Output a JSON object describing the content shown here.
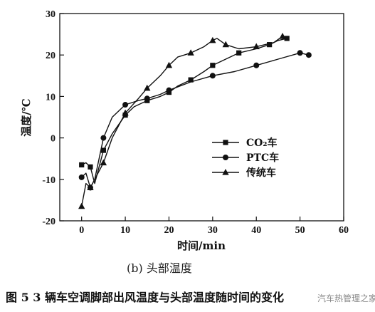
{
  "chart_data": {
    "type": "line",
    "subtitle": "(b)  头部温度",
    "xlabel": "时间/min",
    "ylabel": "温度/℃",
    "xlim": [
      -5,
      60
    ],
    "ylim": [
      -20,
      30
    ],
    "xticks": [
      "0",
      "10",
      "20",
      "30",
      "40",
      "50",
      "60"
    ],
    "yticks": [
      "-20",
      "-10",
      "0",
      "10",
      "20",
      "30"
    ],
    "legend_position": "center-right",
    "series": [
      {
        "name": "CO₂车",
        "marker": "square",
        "x": [
          0,
          1,
          2,
          3,
          5,
          7,
          10,
          12,
          15,
          18,
          20,
          22,
          25,
          28,
          30,
          33,
          36,
          40,
          43,
          45,
          47
        ],
        "y": [
          -6.5,
          -6,
          -7,
          -11,
          -3,
          1,
          5.5,
          7.5,
          9,
          10,
          11,
          12.5,
          14,
          16,
          17.5,
          19,
          20.5,
          21.5,
          22.5,
          23.5,
          24
        ]
      },
      {
        "name": "PTC车",
        "marker": "circle",
        "x": [
          0,
          1,
          2,
          3,
          5,
          7,
          10,
          13,
          15,
          18,
          20,
          25,
          30,
          35,
          40,
          45,
          50,
          52
        ],
        "y": [
          -9.5,
          -8.5,
          -12,
          -10,
          0,
          5,
          8,
          9,
          9.5,
          10.5,
          11.5,
          13.5,
          15,
          16,
          17.5,
          19,
          20.5,
          20
        ]
      },
      {
        "name": "传统车",
        "marker": "triangle",
        "x": [
          0,
          1,
          2,
          3,
          5,
          7,
          10,
          13,
          15,
          18,
          20,
          22,
          25,
          28,
          30,
          31,
          33,
          36,
          40,
          44,
          46
        ],
        "y": [
          -16.5,
          -11,
          -12,
          -10,
          -6,
          0,
          6,
          9.5,
          12,
          15,
          17.5,
          19.5,
          20.5,
          22,
          23.5,
          24,
          22.5,
          21.5,
          22,
          23,
          24.5
        ]
      }
    ]
  },
  "caption": "图 5  3 辆车空调脚部出风温度与头部温度随时间的变化",
  "watermark": "汽车热管理之家"
}
